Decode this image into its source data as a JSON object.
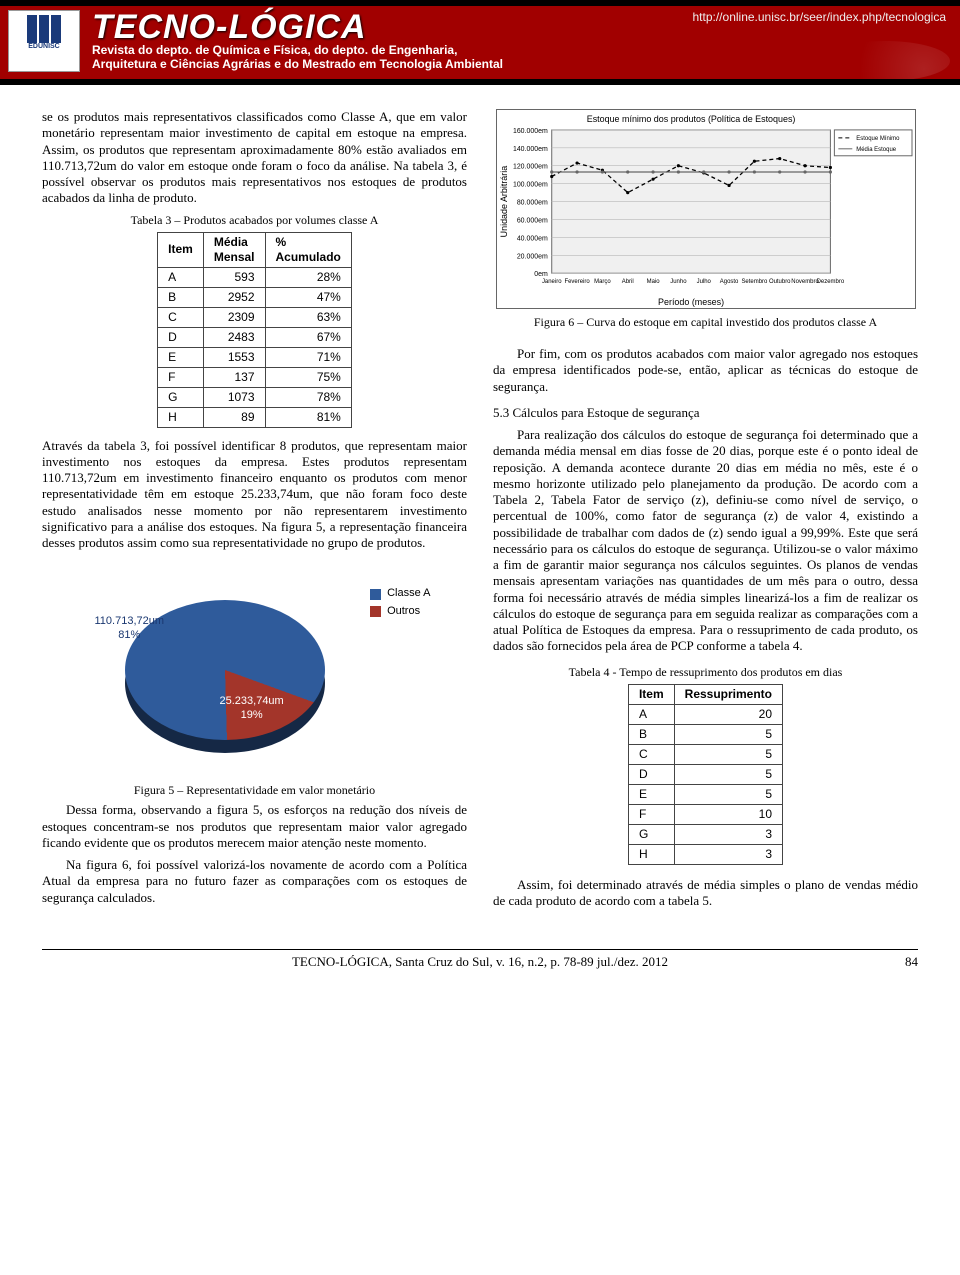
{
  "header": {
    "logo_label": "EDUNISC",
    "title": "TECNO-LÓGICA",
    "subtitle_1": "Revista do depto. de Química e Física, do depto. de Engenharia,",
    "subtitle_2": "Arquitetura e Ciências Agrárias e do Mestrado em Tecnologia Ambiental",
    "url": "http://online.unisc.br/seer/index.php/tecnologica"
  },
  "left": {
    "p1": "se os produtos mais representativos classificados como Classe A, que em valor monetário representam maior investimento de capital em estoque na empresa. Assim, os produtos que representam aproximadamente 80% estão avaliados em 110.713,72um do valor em estoque onde foram o foco da análise. Na tabela 3, é possível observar os produtos mais representativos nos estoques de produtos acabados da linha de produto.",
    "tbl3_caption": "Tabela 3 – Produtos acabados por volumes classe A",
    "tbl3": {
      "head": [
        "Item",
        "Média Mensal",
        "% Acumulado"
      ],
      "rows": [
        [
          "A",
          "593",
          "28%"
        ],
        [
          "B",
          "2952",
          "47%"
        ],
        [
          "C",
          "2309",
          "63%"
        ],
        [
          "D",
          "2483",
          "67%"
        ],
        [
          "E",
          "1553",
          "71%"
        ],
        [
          "F",
          "137",
          "75%"
        ],
        [
          "G",
          "1073",
          "78%"
        ],
        [
          "H",
          "89",
          "81%"
        ]
      ]
    },
    "p2": "Através da tabela 3, foi possível identificar 8 produtos, que representam maior investimento nos estoques da empresa. Estes produtos representam 110.713,72um em investimento financeiro enquanto os produtos com menor representatividade têm em estoque 25.233,74um, que não foram foco deste estudo analisados nesse momento por não representarem investimento significativo para a análise dos estoques. Na figura 5, a representação financeira desses produtos assim como sua representatividade no grupo de produtos.",
    "fig5": {
      "type": "pie-3d",
      "slices": [
        {
          "label": "Classe A",
          "value_label": "110.713,72um",
          "pct_label": "81%",
          "pct": 81,
          "color": "#2f5b9b"
        },
        {
          "label": "Outros",
          "value_label": "25.233,74um",
          "pct_label": "19%",
          "pct": 19,
          "color": "#a3352a"
        }
      ],
      "legend_colors": {
        "classeA": "#2f5b9b",
        "outros": "#a3352a"
      },
      "label_color": "#1a3770",
      "shadow_color": "#152845"
    },
    "fig5_caption": "Figura 5 – Representatividade em valor monetário",
    "p3": "Dessa forma, observando a figura 5, os esforços na redução dos níveis de estoques concentram-se nos produtos que representam maior valor agregado ficando evidente que os produtos merecem maior atenção neste momento.",
    "p4": "Na figura 6, foi possível valorizá-los novamente de acordo com a Política Atual da empresa para no futuro fazer as comparações com os estoques de segurança calculados."
  },
  "right": {
    "fig6": {
      "type": "line",
      "title": "Estoque mínimo dos produtos (Política de Estoques)",
      "x_label": "Período (meses)",
      "y_label": "Unidade Arbitrária",
      "categories": [
        "Janeiro",
        "Fevereiro",
        "Março",
        "Abril",
        "Maio",
        "Junho",
        "Julho",
        "Agosto",
        "Setembro",
        "Outubro",
        "Novembro",
        "Dezembro"
      ],
      "ylim": [
        0,
        160000
      ],
      "ytick_step": 20000,
      "ytick_labels": [
        "0em",
        "20.000em",
        "40.000em",
        "60.000em",
        "80.000em",
        "100.000em",
        "120.000em",
        "140.000em",
        "160.000em"
      ],
      "series": [
        {
          "name": "Estoque Mínimo",
          "color": "#000000",
          "dash": "4 3",
          "values": [
            108000,
            123000,
            115000,
            90000,
            105000,
            120000,
            112000,
            98000,
            125000,
            128000,
            120000,
            118000
          ]
        },
        {
          "name": "Média Estoque",
          "color": "#666666",
          "dash": "none",
          "values": [
            113000,
            113000,
            113000,
            113000,
            113000,
            113000,
            113000,
            113000,
            113000,
            113000,
            113000,
            113000
          ]
        }
      ],
      "plot_bg": "#f0f0f0",
      "grid_color": "#b8b8b8",
      "font_size": 8
    },
    "fig6_caption": "Figura 6 – Curva do estoque em capital investido dos produtos classe A",
    "p1": "Por fim, com os produtos acabados com maior valor agregado nos estoques da empresa identificados pode-se, então, aplicar as técnicas do estoque de segurança.",
    "sec53": "5.3 Cálculos para Estoque de segurança",
    "p2": "Para realização dos cálculos do estoque de segurança foi determinado que a demanda média mensal em dias fosse de 20 dias, porque este é o ponto ideal de reposição. A demanda acontece durante 20 dias em média no mês, este é o mesmo horizonte utilizado pelo planejamento da produção. De acordo com a Tabela 2, Tabela Fator de serviço (z), definiu-se como nível de serviço, o percentual de 100%, como fator de segurança (z) de valor 4, existindo a possibilidade de trabalhar com dados de (z) sendo igual a 99,99%. Este que será necessário para os cálculos do estoque de segurança. Utilizou-se o valor máximo a fim de garantir maior segurança nos cálculos seguintes. Os planos de vendas mensais apresentam variações nas quantidades de um mês para o outro, dessa forma foi necessário através de média simples linearizá-los a fim de realizar os cálculos do estoque de segurança para em seguida realizar as comparações com a atual Política de Estoques da empresa. Para o ressuprimento de cada produto, os dados são fornecidos pela área de PCP conforme a tabela 4.",
    "tbl4_caption": "Tabela 4 - Tempo de ressuprimento dos produtos em dias",
    "tbl4": {
      "head": [
        "Item",
        "Ressuprimento"
      ],
      "rows": [
        [
          "A",
          "20"
        ],
        [
          "B",
          "5"
        ],
        [
          "C",
          "5"
        ],
        [
          "D",
          "5"
        ],
        [
          "E",
          "5"
        ],
        [
          "F",
          "10"
        ],
        [
          "G",
          "3"
        ],
        [
          "H",
          "3"
        ]
      ]
    },
    "p3": "Assim, foi determinado através de média simples o plano de vendas médio de cada produto de acordo com a tabela 5."
  },
  "footer": {
    "text": "TECNO-LÓGICA, Santa Cruz do Sul, v. 16, n.2, p. 78-89 jul./dez. 2012",
    "page": "84"
  }
}
